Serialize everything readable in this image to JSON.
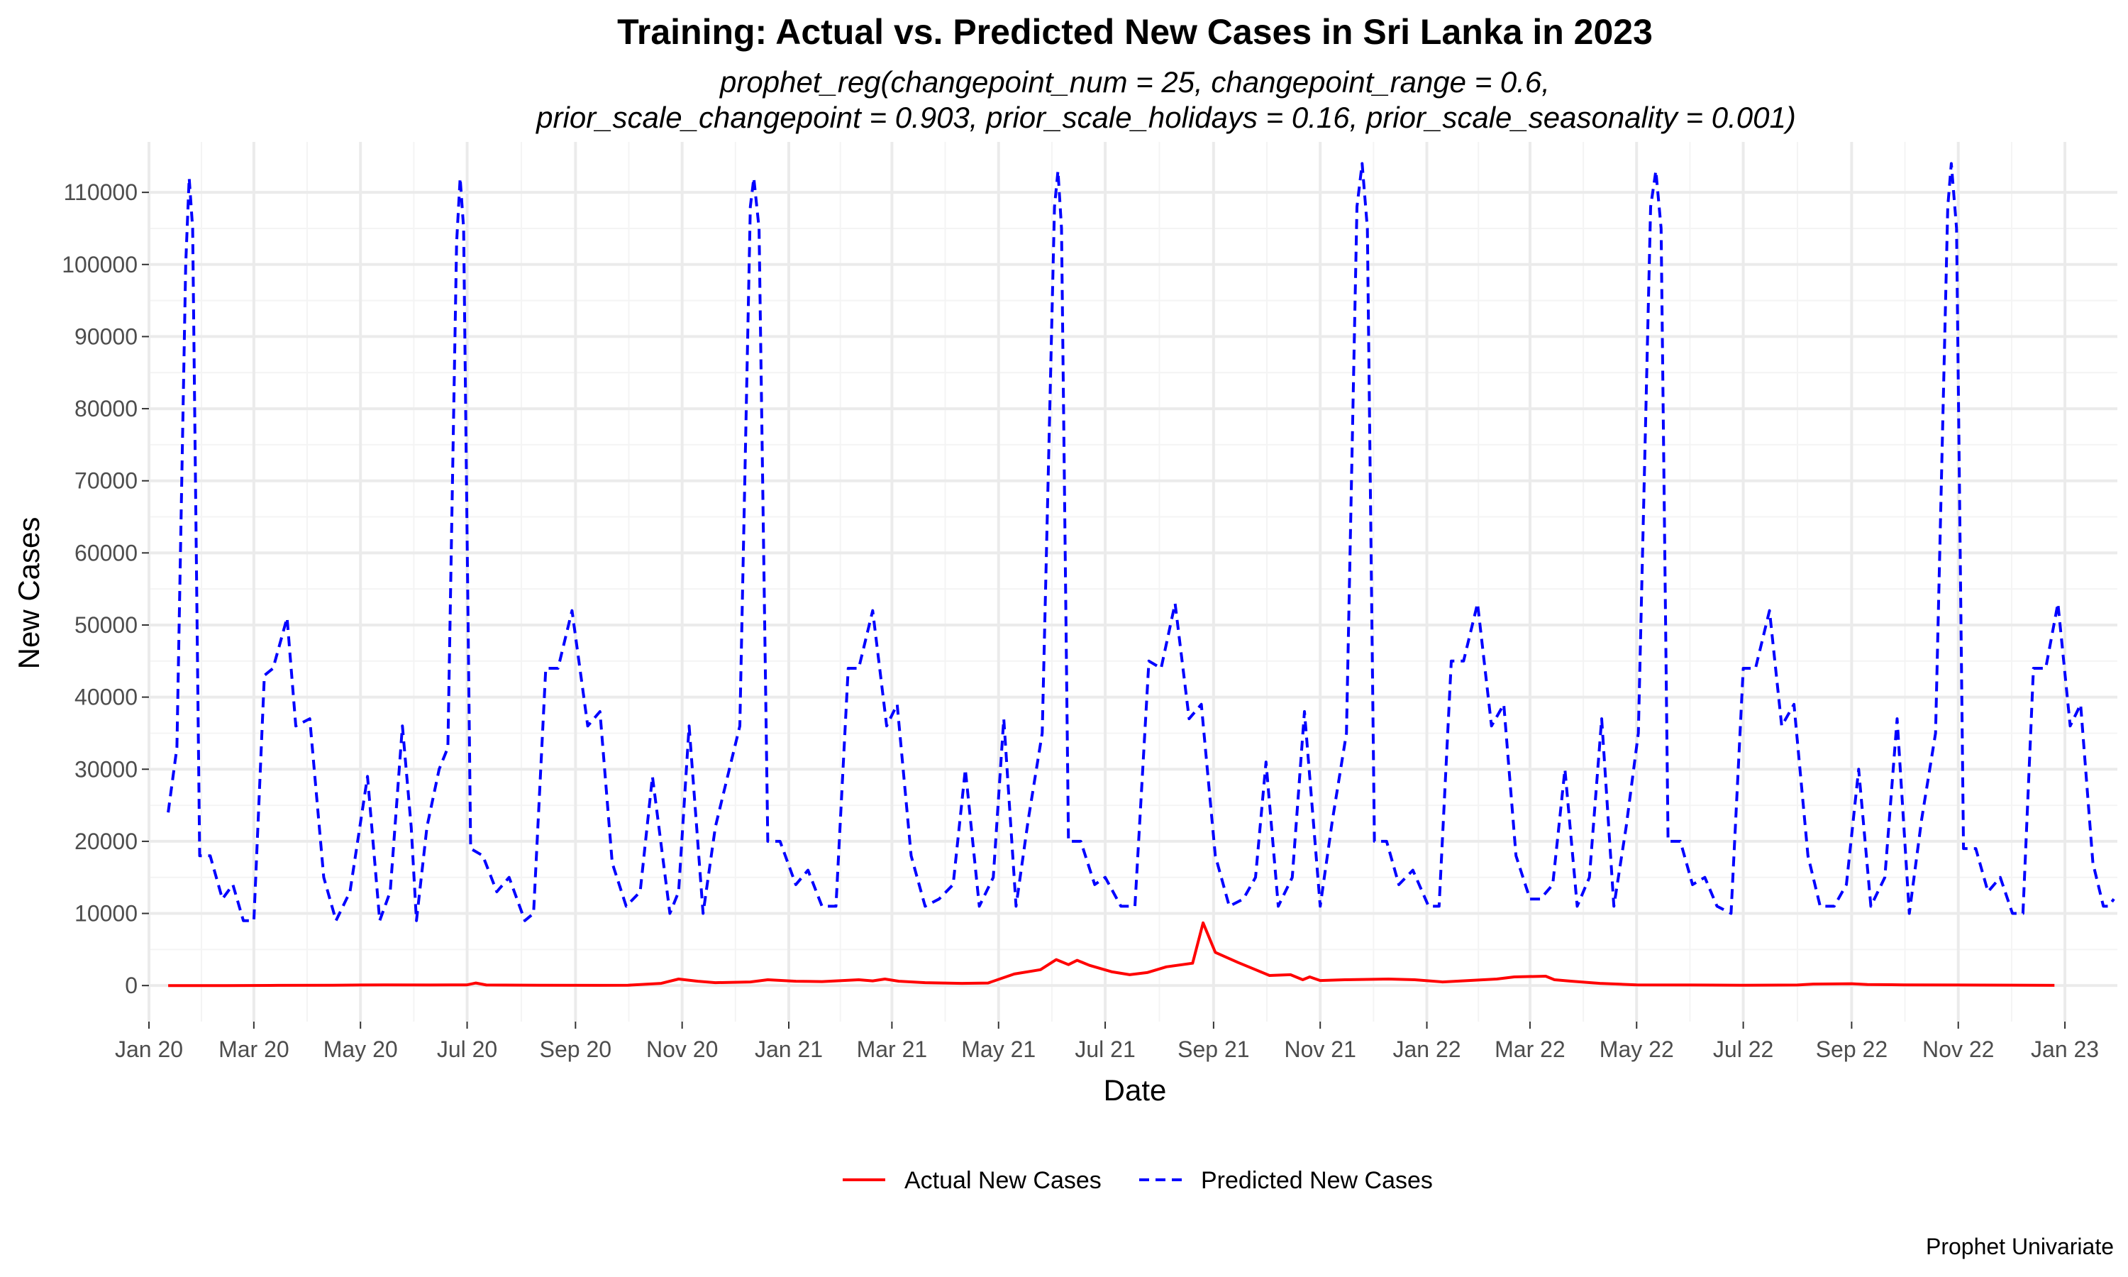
{
  "title": "Training: Actual vs. Predicted New Cases in Sri Lanka in 2023",
  "subtitle_line1": "prophet_reg(changepoint_num = 25, changepoint_range = 0.6,",
  "subtitle_line2": "prior_scale_changepoint = 0.903, prior_scale_holidays = 0.16, prior_scale_seasonality = 0.001)",
  "caption": "Prophet Univariate",
  "colors": {
    "actual": "#ff0000",
    "predicted": "#0000ff"
  },
  "chart_data": {
    "type": "line",
    "title": "Training: Actual vs. Predicted New Cases in Sri Lanka in 2023",
    "xlabel": "Date",
    "ylabel": "New Cases",
    "x_range": [
      "2020-01-01",
      "2023-01-31"
    ],
    "ylim": [
      -5000,
      117000
    ],
    "x_ticks": [
      {
        "date": "2020-01-01",
        "label": "Jan 20"
      },
      {
        "date": "2020-03-01",
        "label": "Mar 20"
      },
      {
        "date": "2020-05-01",
        "label": "May 20"
      },
      {
        "date": "2020-07-01",
        "label": "Jul 20"
      },
      {
        "date": "2020-09-01",
        "label": "Sep 20"
      },
      {
        "date": "2020-11-01",
        "label": "Nov 20"
      },
      {
        "date": "2021-01-01",
        "label": "Jan 21"
      },
      {
        "date": "2021-03-01",
        "label": "Mar 21"
      },
      {
        "date": "2021-05-01",
        "label": "May 21"
      },
      {
        "date": "2021-07-01",
        "label": "Jul 21"
      },
      {
        "date": "2021-09-01",
        "label": "Sep 21"
      },
      {
        "date": "2021-11-01",
        "label": "Nov 21"
      },
      {
        "date": "2022-01-01",
        "label": "Jan 22"
      },
      {
        "date": "2022-03-01",
        "label": "Mar 22"
      },
      {
        "date": "2022-05-01",
        "label": "May 22"
      },
      {
        "date": "2022-07-01",
        "label": "Jul 22"
      },
      {
        "date": "2022-09-01",
        "label": "Sep 22"
      },
      {
        "date": "2022-11-01",
        "label": "Nov 22"
      },
      {
        "date": "2023-01-01",
        "label": "Jan 23"
      }
    ],
    "y_ticks": [
      {
        "value": 0,
        "label": "0"
      },
      {
        "value": 10000,
        "label": "10000"
      },
      {
        "value": 20000,
        "label": "20000"
      },
      {
        "value": 30000,
        "label": "30000"
      },
      {
        "value": 40000,
        "label": "40000"
      },
      {
        "value": 50000,
        "label": "50000"
      },
      {
        "value": 60000,
        "label": "60000"
      },
      {
        "value": 70000,
        "label": "70000"
      },
      {
        "value": 80000,
        "label": "80000"
      },
      {
        "value": 90000,
        "label": "90000"
      },
      {
        "value": 100000,
        "label": "100000"
      },
      {
        "value": 110000,
        "label": "110000"
      }
    ],
    "legend_position": "bottom",
    "series": [
      {
        "name": "Actual New Cases",
        "style": "solid",
        "points": [
          [
            "2020-01-12",
            0
          ],
          [
            "2020-02-15",
            0
          ],
          [
            "2020-03-15",
            30
          ],
          [
            "2020-04-15",
            50
          ],
          [
            "2020-05-15",
            100
          ],
          [
            "2020-06-10",
            80
          ],
          [
            "2020-07-01",
            100
          ],
          [
            "2020-07-06",
            350
          ],
          [
            "2020-07-12",
            80
          ],
          [
            "2020-08-15",
            40
          ],
          [
            "2020-09-15",
            30
          ],
          [
            "2020-10-01",
            50
          ],
          [
            "2020-10-20",
            300
          ],
          [
            "2020-10-30",
            900
          ],
          [
            "2020-11-10",
            600
          ],
          [
            "2020-11-20",
            400
          ],
          [
            "2020-12-10",
            500
          ],
          [
            "2020-12-20",
            800
          ],
          [
            "2021-01-05",
            600
          ],
          [
            "2021-01-20",
            550
          ],
          [
            "2021-02-10",
            800
          ],
          [
            "2021-02-18",
            650
          ],
          [
            "2021-02-25",
            900
          ],
          [
            "2021-03-05",
            600
          ],
          [
            "2021-03-20",
            400
          ],
          [
            "2021-04-10",
            300
          ],
          [
            "2021-04-25",
            350
          ],
          [
            "2021-05-10",
            1600
          ],
          [
            "2021-05-25",
            2200
          ],
          [
            "2021-06-03",
            3600
          ],
          [
            "2021-06-10",
            2900
          ],
          [
            "2021-06-15",
            3500
          ],
          [
            "2021-06-22",
            2800
          ],
          [
            "2021-07-05",
            1900
          ],
          [
            "2021-07-15",
            1500
          ],
          [
            "2021-07-25",
            1800
          ],
          [
            "2021-08-05",
            2600
          ],
          [
            "2021-08-20",
            3100
          ],
          [
            "2021-08-26",
            8700
          ],
          [
            "2021-09-02",
            4600
          ],
          [
            "2021-09-15",
            3200
          ],
          [
            "2021-09-25",
            2200
          ],
          [
            "2021-10-03",
            1400
          ],
          [
            "2021-10-15",
            1500
          ],
          [
            "2021-10-22",
            800
          ],
          [
            "2021-10-26",
            1200
          ],
          [
            "2021-11-01",
            700
          ],
          [
            "2021-11-15",
            800
          ],
          [
            "2021-12-10",
            900
          ],
          [
            "2021-12-25",
            800
          ],
          [
            "2022-01-10",
            500
          ],
          [
            "2022-01-25",
            700
          ],
          [
            "2022-02-10",
            900
          ],
          [
            "2022-02-20",
            1200
          ],
          [
            "2022-03-10",
            1300
          ],
          [
            "2022-03-15",
            800
          ],
          [
            "2022-03-25",
            600
          ],
          [
            "2022-04-10",
            300
          ],
          [
            "2022-05-01",
            100
          ],
          [
            "2022-06-01",
            80
          ],
          [
            "2022-07-01",
            50
          ],
          [
            "2022-08-01",
            80
          ],
          [
            "2022-08-10",
            200
          ],
          [
            "2022-09-01",
            250
          ],
          [
            "2022-09-10",
            150
          ],
          [
            "2022-10-01",
            100
          ],
          [
            "2022-11-01",
            80
          ],
          [
            "2022-12-01",
            60
          ],
          [
            "2022-12-26",
            30
          ]
        ]
      },
      {
        "name": "Predicted New Cases",
        "style": "dashed",
        "points": [
          [
            "2020-01-12",
            24000
          ],
          [
            "2020-01-17",
            33000
          ],
          [
            "2020-01-22",
            100000
          ],
          [
            "2020-01-24",
            112000
          ],
          [
            "2020-01-26",
            105000
          ],
          [
            "2020-01-30",
            18000
          ],
          [
            "2020-02-05",
            18000
          ],
          [
            "2020-02-12",
            12000
          ],
          [
            "2020-02-18",
            14000
          ],
          [
            "2020-02-24",
            9000
          ],
          [
            "2020-03-01",
            9000
          ],
          [
            "2020-03-07",
            43000
          ],
          [
            "2020-03-12",
            44000
          ],
          [
            "2020-03-20",
            51000
          ],
          [
            "2020-03-25",
            36000
          ],
          [
            "2020-04-02",
            37000
          ],
          [
            "2020-04-10",
            15000
          ],
          [
            "2020-04-17",
            9000
          ],
          [
            "2020-04-25",
            13000
          ],
          [
            "2020-05-05",
            29000
          ],
          [
            "2020-05-12",
            9000
          ],
          [
            "2020-05-18",
            13000
          ],
          [
            "2020-05-25",
            36000
          ],
          [
            "2020-05-30",
            22000
          ],
          [
            "2020-06-02",
            9000
          ],
          [
            "2020-06-08",
            22000
          ],
          [
            "2020-06-15",
            30000
          ],
          [
            "2020-06-20",
            33000
          ],
          [
            "2020-06-25",
            103000
          ],
          [
            "2020-06-27",
            112000
          ],
          [
            "2020-06-29",
            105000
          ],
          [
            "2020-07-03",
            19000
          ],
          [
            "2020-07-10",
            18000
          ],
          [
            "2020-07-18",
            13000
          ],
          [
            "2020-07-25",
            15000
          ],
          [
            "2020-08-03",
            9000
          ],
          [
            "2020-08-08",
            10000
          ],
          [
            "2020-08-15",
            44000
          ],
          [
            "2020-08-22",
            44000
          ],
          [
            "2020-08-30",
            52000
          ],
          [
            "2020-09-08",
            36000
          ],
          [
            "2020-09-15",
            38000
          ],
          [
            "2020-09-22",
            17000
          ],
          [
            "2020-09-30",
            11000
          ],
          [
            "2020-10-08",
            13000
          ],
          [
            "2020-10-15",
            29000
          ],
          [
            "2020-10-25",
            10000
          ],
          [
            "2020-10-30",
            13000
          ],
          [
            "2020-11-05",
            36000
          ],
          [
            "2020-11-13",
            10000
          ],
          [
            "2020-11-20",
            22000
          ],
          [
            "2020-11-28",
            30000
          ],
          [
            "2020-12-04",
            36000
          ],
          [
            "2020-12-10",
            108000
          ],
          [
            "2020-12-12",
            112000
          ],
          [
            "2020-12-15",
            105000
          ],
          [
            "2020-12-20",
            20000
          ],
          [
            "2020-12-27",
            20000
          ],
          [
            "2021-01-05",
            14000
          ],
          [
            "2021-01-12",
            16000
          ],
          [
            "2021-01-20",
            11000
          ],
          [
            "2021-01-28",
            11000
          ],
          [
            "2021-02-04",
            44000
          ],
          [
            "2021-02-10",
            44000
          ],
          [
            "2021-02-18",
            52000
          ],
          [
            "2021-02-26",
            36000
          ],
          [
            "2021-03-04",
            39000
          ],
          [
            "2021-03-12",
            18000
          ],
          [
            "2021-03-20",
            11000
          ],
          [
            "2021-03-28",
            12000
          ],
          [
            "2021-04-05",
            14000
          ],
          [
            "2021-04-12",
            30000
          ],
          [
            "2021-04-20",
            11000
          ],
          [
            "2021-04-28",
            15000
          ],
          [
            "2021-05-04",
            37000
          ],
          [
            "2021-05-11",
            11000
          ],
          [
            "2021-05-18",
            23000
          ],
          [
            "2021-05-26",
            35000
          ],
          [
            "2021-06-02",
            108000
          ],
          [
            "2021-06-04",
            113000
          ],
          [
            "2021-06-06",
            105000
          ],
          [
            "2021-06-10",
            20000
          ],
          [
            "2021-06-17",
            20000
          ],
          [
            "2021-06-25",
            14000
          ],
          [
            "2021-07-01",
            15000
          ],
          [
            "2021-07-10",
            11000
          ],
          [
            "2021-07-18",
            11000
          ],
          [
            "2021-07-26",
            45000
          ],
          [
            "2021-08-02",
            44000
          ],
          [
            "2021-08-10",
            53000
          ],
          [
            "2021-08-18",
            37000
          ],
          [
            "2021-08-25",
            39000
          ],
          [
            "2021-09-02",
            18000
          ],
          [
            "2021-09-10",
            11000
          ],
          [
            "2021-09-18",
            12000
          ],
          [
            "2021-09-25",
            15000
          ],
          [
            "2021-10-01",
            31000
          ],
          [
            "2021-10-08",
            11000
          ],
          [
            "2021-10-16",
            15000
          ],
          [
            "2021-10-23",
            38000
          ],
          [
            "2021-11-01",
            11000
          ],
          [
            "2021-11-08",
            23000
          ],
          [
            "2021-11-16",
            35000
          ],
          [
            "2021-11-22",
            108000
          ],
          [
            "2021-11-25",
            114000
          ],
          [
            "2021-11-28",
            105000
          ],
          [
            "2021-12-02",
            20000
          ],
          [
            "2021-12-09",
            20000
          ],
          [
            "2021-12-16",
            14000
          ],
          [
            "2021-12-24",
            16000
          ],
          [
            "2022-01-02",
            11000
          ],
          [
            "2022-01-08",
            11000
          ],
          [
            "2022-01-15",
            45000
          ],
          [
            "2022-01-22",
            45000
          ],
          [
            "2022-01-30",
            53000
          ],
          [
            "2022-02-07",
            36000
          ],
          [
            "2022-02-14",
            39000
          ],
          [
            "2022-02-21",
            18000
          ],
          [
            "2022-03-01",
            12000
          ],
          [
            "2022-03-07",
            12000
          ],
          [
            "2022-03-14",
            14000
          ],
          [
            "2022-03-21",
            30000
          ],
          [
            "2022-03-28",
            11000
          ],
          [
            "2022-04-04",
            15000
          ],
          [
            "2022-04-11",
            37000
          ],
          [
            "2022-04-18",
            11000
          ],
          [
            "2022-04-25",
            22000
          ],
          [
            "2022-05-02",
            35000
          ],
          [
            "2022-05-09",
            108000
          ],
          [
            "2022-05-12",
            113000
          ],
          [
            "2022-05-15",
            105000
          ],
          [
            "2022-05-19",
            20000
          ],
          [
            "2022-05-26",
            20000
          ],
          [
            "2022-06-02",
            14000
          ],
          [
            "2022-06-09",
            15000
          ],
          [
            "2022-06-16",
            11000
          ],
          [
            "2022-06-24",
            10000
          ],
          [
            "2022-07-01",
            44000
          ],
          [
            "2022-07-08",
            44000
          ],
          [
            "2022-07-16",
            52000
          ],
          [
            "2022-07-23",
            36000
          ],
          [
            "2022-07-30",
            39000
          ],
          [
            "2022-08-07",
            18000
          ],
          [
            "2022-08-14",
            11000
          ],
          [
            "2022-08-22",
            11000
          ],
          [
            "2022-08-29",
            14000
          ],
          [
            "2022-09-05",
            30000
          ],
          [
            "2022-09-12",
            11000
          ],
          [
            "2022-09-20",
            15000
          ],
          [
            "2022-09-27",
            37000
          ],
          [
            "2022-10-04",
            10000
          ],
          [
            "2022-10-11",
            23000
          ],
          [
            "2022-10-19",
            35000
          ],
          [
            "2022-10-26",
            108000
          ],
          [
            "2022-10-28",
            114000
          ],
          [
            "2022-10-31",
            105000
          ],
          [
            "2022-11-04",
            19000
          ],
          [
            "2022-11-11",
            19000
          ],
          [
            "2022-11-18",
            13000
          ],
          [
            "2022-11-25",
            15000
          ],
          [
            "2022-12-02",
            10000
          ],
          [
            "2022-12-08",
            10000
          ],
          [
            "2022-12-14",
            44000
          ],
          [
            "2022-12-21",
            44000
          ],
          [
            "2022-12-28",
            53000
          ],
          [
            "2023-01-04",
            36000
          ],
          [
            "2023-01-10",
            39000
          ],
          [
            "2023-01-17",
            17000
          ],
          [
            "2023-01-23",
            11000
          ],
          [
            "2023-01-26",
            11000
          ],
          [
            "2023-01-29",
            12000
          ]
        ]
      }
    ]
  }
}
